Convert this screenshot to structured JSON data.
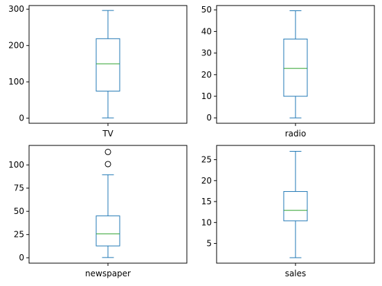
{
  "colors": {
    "box": "#1f77b4",
    "median": "#2ca02c",
    "frame": "#000000",
    "flier_edge": "#000000"
  },
  "chart_data": [
    {
      "type": "box",
      "xlabel": "TV",
      "ylim": [
        -14,
        310
      ],
      "yticks": [
        0,
        100,
        200,
        300
      ],
      "box": {
        "whisker_low": 0.7,
        "q1": 74.4,
        "median": 149.7,
        "q3": 218.8,
        "whisker_high": 296.4
      },
      "fliers": []
    },
    {
      "type": "box",
      "xlabel": "radio",
      "ylim": [
        -2.5,
        52
      ],
      "yticks": [
        0,
        10,
        20,
        30,
        40,
        50
      ],
      "box": {
        "whisker_low": 0.0,
        "q1": 10.0,
        "median": 22.9,
        "q3": 36.5,
        "whisker_high": 49.6
      },
      "fliers": []
    },
    {
      "type": "box",
      "xlabel": "newspaper",
      "ylim": [
        -5.8,
        121
      ],
      "yticks": [
        0,
        25,
        50,
        75,
        100
      ],
      "box": {
        "whisker_low": 0.3,
        "q1": 12.75,
        "median": 25.75,
        "q3": 45.1,
        "whisker_high": 89.4
      },
      "fliers": [
        100.9,
        114.0
      ]
    },
    {
      "type": "box",
      "xlabel": "sales",
      "ylim": [
        0.3,
        28.4
      ],
      "yticks": [
        5,
        10,
        15,
        20,
        25
      ],
      "box": {
        "whisker_low": 1.6,
        "q1": 10.4,
        "median": 12.9,
        "q3": 17.4,
        "whisker_high": 27.0
      },
      "fliers": []
    }
  ]
}
